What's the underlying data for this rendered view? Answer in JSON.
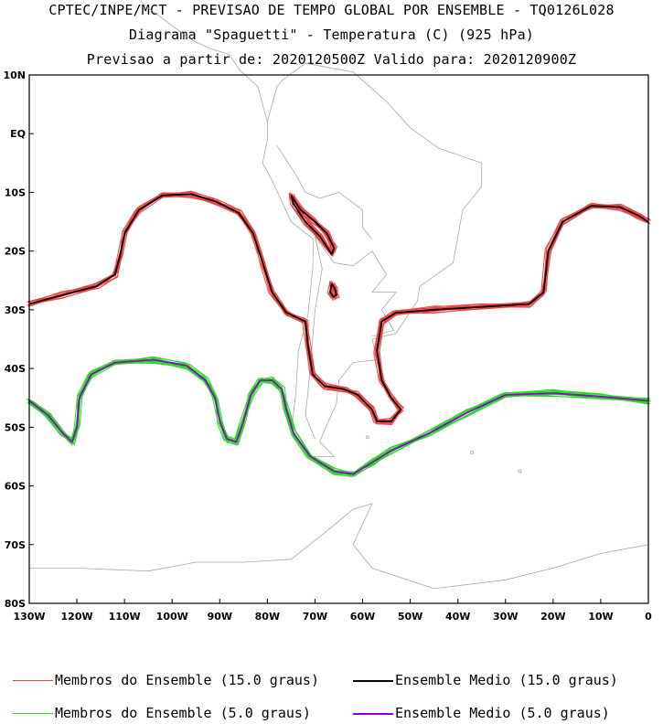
{
  "header": {
    "line1": "CPTEC/INPE/MCT - PREVISAO DE TEMPO GLOBAL POR ENSEMBLE - TQ0126L028",
    "line2": "Diagrama \"Spaguetti\" - Temperatura (C) (925 hPa)",
    "line3": "Previsao a partir de: 2020120500Z  Valido para: 2020120900Z"
  },
  "axes": {
    "lat_labels": [
      "10N",
      "EQ",
      "10S",
      "20S",
      "30S",
      "40S",
      "50S",
      "60S",
      "70S",
      "80S"
    ],
    "lat_values": [
      10,
      0,
      -10,
      -20,
      -30,
      -40,
      -50,
      -60,
      -70,
      -80
    ],
    "lon_labels": [
      "130W",
      "120W",
      "110W",
      "100W",
      "90W",
      "80W",
      "70W",
      "60W",
      "50W",
      "40W",
      "30W",
      "20W",
      "10W",
      "0"
    ],
    "lon_values": [
      -130,
      -120,
      -110,
      -100,
      -90,
      -80,
      -70,
      -60,
      -50,
      -40,
      -30,
      -20,
      -10,
      0
    ],
    "lon_range": [
      -130,
      0
    ],
    "lat_range": [
      -80,
      10
    ]
  },
  "colors": {
    "member15": "#ee4444",
    "mean15": "#000000",
    "member5": "#22dd22",
    "mean5": "#9900cc",
    "coast": "#aaaaaa"
  },
  "legend": {
    "member15": "Membros do Ensemble (15.0 graus)",
    "mean15": "Ensemble Medio (15.0 graus)",
    "member5": "Membros do Ensemble (5.0 graus)",
    "mean5": "Ensemble Medio (5.0 graus)"
  },
  "contours": {
    "iso15_main": [
      [
        -130,
        -29
      ],
      [
        -123,
        -27.5
      ],
      [
        -116,
        -26
      ],
      [
        -112,
        -24
      ],
      [
        -111,
        -21
      ],
      [
        -110,
        -17
      ],
      [
        -107,
        -13
      ],
      [
        -102,
        -10.5
      ],
      [
        -96,
        -10.3
      ],
      [
        -91,
        -11.5
      ],
      [
        -86,
        -13.5
      ],
      [
        -83,
        -17
      ],
      [
        -81,
        -22
      ],
      [
        -79,
        -27
      ],
      [
        -76,
        -30.5
      ],
      [
        -72,
        -32
      ],
      [
        -71.5,
        -36
      ],
      [
        -70.5,
        -41
      ],
      [
        -68,
        -43
      ],
      [
        -64,
        -43.5
      ],
      [
        -61,
        -44.5
      ],
      [
        -58,
        -47
      ],
      [
        -57,
        -49
      ],
      [
        -54,
        -49
      ],
      [
        -52,
        -47
      ],
      [
        -54,
        -45
      ],
      [
        -56,
        -42
      ],
      [
        -57,
        -37
      ],
      [
        -56,
        -32
      ],
      [
        -53,
        -30.5
      ],
      [
        -45,
        -30
      ],
      [
        -35,
        -29.5
      ],
      [
        -25,
        -29
      ],
      [
        -22,
        -27
      ],
      [
        -21,
        -20
      ],
      [
        -18,
        -15
      ],
      [
        -12,
        -12.3
      ],
      [
        -6,
        -12.5
      ],
      [
        -2,
        -14
      ],
      [
        0,
        -15
      ]
    ],
    "iso15_andes": [
      [
        -75,
        -10.5
      ],
      [
        -73,
        -13
      ],
      [
        -70,
        -15
      ],
      [
        -67.5,
        -17
      ],
      [
        -66,
        -19.5
      ],
      [
        -66.5,
        -20.5
      ],
      [
        -69,
        -17.5
      ],
      [
        -72,
        -15
      ],
      [
        -74.5,
        -12
      ],
      [
        -75,
        -10.5
      ]
    ],
    "iso15_small": [
      [
        -66.5,
        -25.5
      ],
      [
        -65.8,
        -26.5
      ],
      [
        -65.5,
        -27.5
      ],
      [
        -66.2,
        -27.8
      ],
      [
        -66.8,
        -27
      ],
      [
        -66.5,
        -25.5
      ]
    ],
    "iso5_main": [
      [
        -130,
        -45.5
      ],
      [
        -126,
        -48
      ],
      [
        -123,
        -51
      ],
      [
        -121,
        -52.5
      ],
      [
        -120,
        -50
      ],
      [
        -119.5,
        -45
      ],
      [
        -117,
        -41
      ],
      [
        -112,
        -39
      ],
      [
        -104,
        -38.5
      ],
      [
        -97,
        -39.5
      ],
      [
        -93,
        -42
      ],
      [
        -91,
        -45
      ],
      [
        -90,
        -49
      ],
      [
        -88.5,
        -52
      ],
      [
        -86.5,
        -52.5
      ],
      [
        -85,
        -49
      ],
      [
        -83.5,
        -44.5
      ],
      [
        -81.5,
        -42
      ],
      [
        -79,
        -42
      ],
      [
        -77,
        -43.5
      ],
      [
        -76,
        -47
      ],
      [
        -74.5,
        -51
      ],
      [
        -71,
        -55
      ],
      [
        -66,
        -57.5
      ],
      [
        -62,
        -58
      ],
      [
        -58,
        -56
      ],
      [
        -54,
        -54
      ],
      [
        -46,
        -51
      ],
      [
        -38,
        -47.5
      ],
      [
        -30,
        -44.5
      ],
      [
        -20,
        -44.2
      ],
      [
        -10,
        -44.8
      ],
      [
        0,
        -45.5
      ]
    ]
  }
}
